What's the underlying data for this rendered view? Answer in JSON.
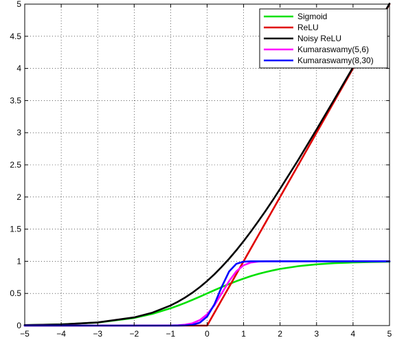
{
  "chart_data": {
    "type": "line",
    "title": "",
    "xlabel": "",
    "ylabel": "",
    "xlim": [
      -5,
      5
    ],
    "ylim": [
      0,
      5
    ],
    "x_ticks": [
      -5,
      -4,
      -3,
      -2,
      -1,
      0,
      1,
      2,
      3,
      4,
      5
    ],
    "x_tick_labels": [
      "−5",
      "−4",
      "−3",
      "−2",
      "−1",
      "0",
      "1",
      "2",
      "3",
      "4",
      "5"
    ],
    "y_ticks": [
      0,
      0.5,
      1,
      1.5,
      2,
      2.5,
      3,
      3.5,
      4,
      4.5,
      5
    ],
    "y_tick_labels": [
      "0",
      "0.5",
      "1",
      "1.5",
      "2",
      "2.5",
      "3",
      "3.5",
      "4",
      "4.5",
      "5"
    ],
    "grid": true,
    "grid_style": "dotted",
    "legend_position": "top-right",
    "x": [
      -5,
      -4,
      -3,
      -2,
      -1.5,
      -1,
      -0.8,
      -0.6,
      -0.4,
      -0.2,
      0,
      0.2,
      0.4,
      0.6,
      0.8,
      1,
      1.2,
      1.4,
      1.6,
      1.8,
      2,
      2.5,
      3,
      3.5,
      4,
      4.5,
      5
    ],
    "series": [
      {
        "name": "Sigmoid",
        "color": "#00e000",
        "values": [
          0.007,
          0.018,
          0.047,
          0.119,
          0.182,
          0.269,
          0.31,
          0.354,
          0.401,
          0.45,
          0.5,
          0.55,
          0.599,
          0.646,
          0.69,
          0.731,
          0.769,
          0.802,
          0.832,
          0.858,
          0.881,
          0.924,
          0.953,
          0.971,
          0.982,
          0.989,
          0.993
        ]
      },
      {
        "name": "ReLU",
        "color": "#e00000",
        "values": [
          0,
          0,
          0,
          0,
          0,
          0,
          0,
          0,
          0,
          0,
          0,
          0.2,
          0.4,
          0.6,
          0.8,
          1.0,
          1.2,
          1.4,
          1.6,
          1.8,
          2.0,
          2.5,
          3.0,
          3.5,
          4.0,
          4.5,
          5.0
        ]
      },
      {
        "name": "Noisy ReLU",
        "color": "#000000",
        "values": [
          0.007,
          0.018,
          0.049,
          0.127,
          0.201,
          0.313,
          0.371,
          0.437,
          0.513,
          0.598,
          0.693,
          0.798,
          0.913,
          1.037,
          1.171,
          1.313,
          1.463,
          1.62,
          1.783,
          1.951,
          2.127,
          2.579,
          3.049,
          3.53,
          4.018,
          4.511,
          5.007
        ]
      },
      {
        "name": "Kumaraswamy(5,6)",
        "color": "#ff00ff",
        "values": [
          0,
          0,
          0,
          0,
          0,
          0.002,
          0.005,
          0.014,
          0.036,
          0.085,
          0.175,
          0.315,
          0.5,
          0.69,
          0.844,
          0.938,
          0.981,
          0.996,
          0.999,
          1.0,
          1.0,
          1.0,
          1.0,
          1.0,
          1.0,
          1.0,
          1.0
        ]
      },
      {
        "name": "Kumaraswamy(8,30)",
        "color": "#0000ff",
        "values": [
          0,
          0,
          0,
          0,
          0,
          0,
          0.001,
          0.003,
          0.012,
          0.045,
          0.14,
          0.33,
          0.6,
          0.84,
          0.96,
          0.995,
          1.0,
          1.0,
          1.0,
          1.0,
          1.0,
          1.0,
          1.0,
          1.0,
          1.0,
          1.0,
          1.0
        ]
      }
    ]
  }
}
